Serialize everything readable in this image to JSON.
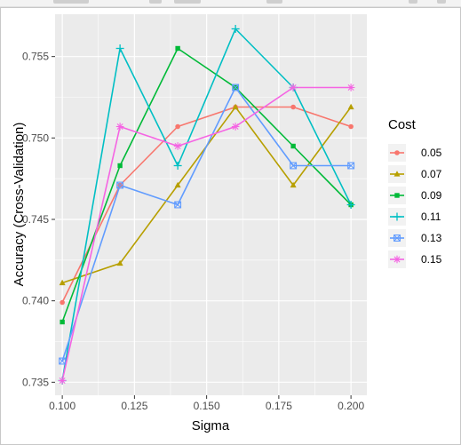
{
  "chart_data": {
    "type": "line",
    "xlabel": "Sigma",
    "ylabel": "Accuracy (Cross-Validation)",
    "x": [
      0.1,
      0.12,
      0.14,
      0.16,
      0.18,
      0.2
    ],
    "xlim": [
      0.0975,
      0.2055
    ],
    "ylim": [
      0.7342,
      0.7576
    ],
    "xticks": [
      0.1,
      0.125,
      0.15,
      0.175,
      0.2
    ],
    "xtick_labels": [
      "0.100",
      "0.125",
      "0.150",
      "0.175",
      "0.200"
    ],
    "yticks": [
      0.735,
      0.74,
      0.745,
      0.75,
      0.755
    ],
    "ytick_labels": [
      "0.735",
      "0.740",
      "0.745",
      "0.750",
      "0.755"
    ],
    "grid": true,
    "legend": {
      "title": "Cost",
      "position": "right"
    },
    "series": [
      {
        "name": "0.05",
        "color": "#F8766D",
        "marker": "circle",
        "values": [
          0.7399,
          0.7471,
          0.7507,
          0.7519,
          0.7519,
          0.7507
        ]
      },
      {
        "name": "0.07",
        "color": "#B79F00",
        "marker": "triangle",
        "values": [
          0.7411,
          0.7423,
          0.7471,
          0.7519,
          0.7471,
          0.7519
        ]
      },
      {
        "name": "0.09",
        "color": "#00BA38",
        "marker": "square",
        "values": [
          0.7387,
          0.7483,
          0.7555,
          0.7531,
          0.7495,
          0.7459
        ]
      },
      {
        "name": "0.11",
        "color": "#00BFC4",
        "marker": "plus",
        "values": [
          0.7351,
          0.7555,
          0.7483,
          0.7567,
          0.7531,
          0.7459
        ]
      },
      {
        "name": "0.13",
        "color": "#619CFF",
        "marker": "boxx",
        "values": [
          0.7363,
          0.7471,
          0.7459,
          0.7531,
          0.7483,
          0.7483
        ]
      },
      {
        "name": "0.15",
        "color": "#F564E3",
        "marker": "star",
        "values": [
          0.7351,
          0.7507,
          0.7495,
          0.7507,
          0.7531,
          0.7531
        ]
      }
    ]
  }
}
